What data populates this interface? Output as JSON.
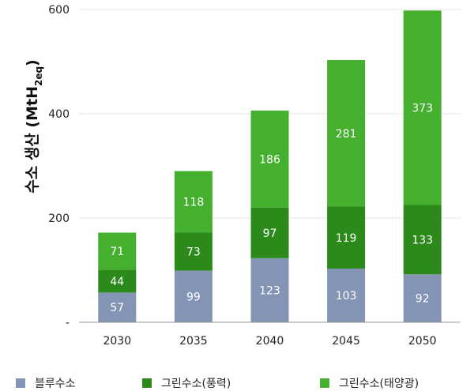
{
  "chart_data": {
    "type": "bar",
    "stacked": true,
    "categories": [
      "2030",
      "2035",
      "2040",
      "2045",
      "2050"
    ],
    "series": [
      {
        "name": "블루수소",
        "color": "#8394b4",
        "values": [
          57,
          99,
          123,
          103,
          92
        ]
      },
      {
        "name": "그린수소(풍력)",
        "color": "#2b8a1a",
        "values": [
          44,
          73,
          97,
          119,
          133
        ]
      },
      {
        "name": "그린수소(태양광)",
        "color": "#44b02e",
        "values": [
          71,
          118,
          186,
          281,
          373
        ]
      }
    ],
    "ylabel_main": "수소 생산 (MtH",
    "ylabel_sub": "2eq",
    "ylabel_end": ")",
    "ylim": [
      0,
      600
    ],
    "yticks": [
      {
        "value": 0,
        "label": "-"
      },
      {
        "value": 200,
        "label": "200"
      },
      {
        "value": 400,
        "label": "400"
      },
      {
        "value": 600,
        "label": "600"
      }
    ],
    "grid": true,
    "legend_position": "bottom"
  }
}
